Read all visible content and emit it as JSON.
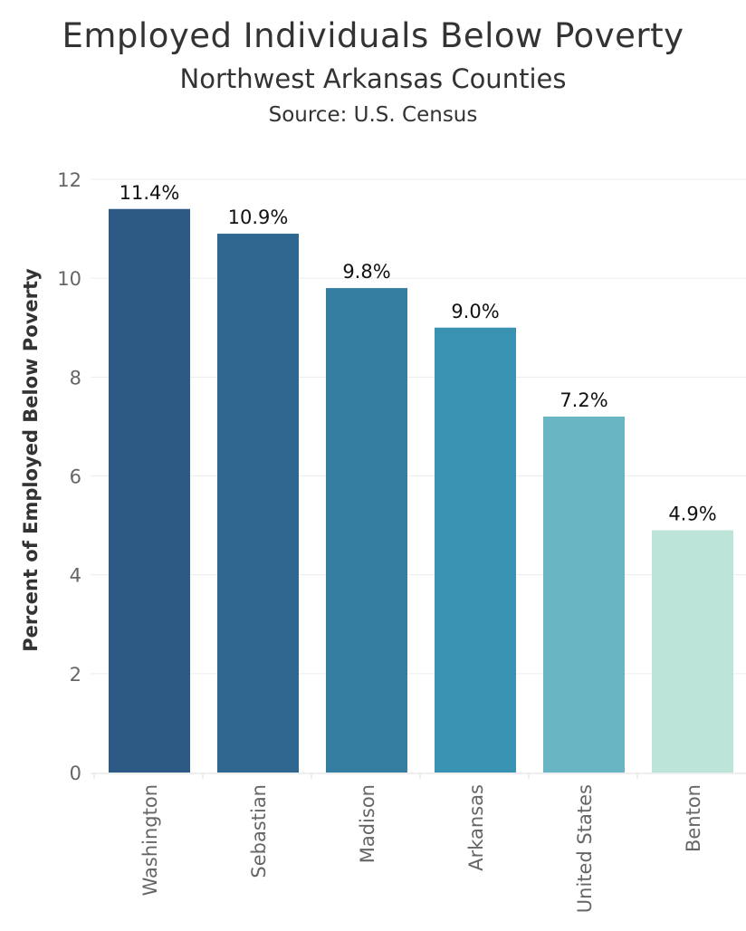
{
  "chart_data": {
    "type": "bar",
    "title": "Employed Individuals Below Poverty",
    "subtitle": "Northwest Arkansas Counties",
    "source": "Source: U.S. Census",
    "ylabel": "Percent of Employed Below Poverty",
    "xlabel": "",
    "ylim": [
      0,
      12
    ],
    "yticks": [
      0,
      2,
      4,
      6,
      8,
      10,
      12
    ],
    "grid": true,
    "categories": [
      "Washington",
      "Sebastian",
      "Madison",
      "Arkansas",
      "United States",
      "Benton"
    ],
    "values": [
      11.4,
      10.9,
      9.8,
      9.0,
      7.2,
      4.9
    ],
    "data_labels": [
      "11.4%",
      "10.9%",
      "9.8%",
      "9.0%",
      "7.2%",
      "4.9%"
    ],
    "colors": [
      "#2c5a85",
      "#2f6790",
      "#367ea1",
      "#3a92b3",
      "#6ab5c4",
      "#bde4d9"
    ]
  }
}
